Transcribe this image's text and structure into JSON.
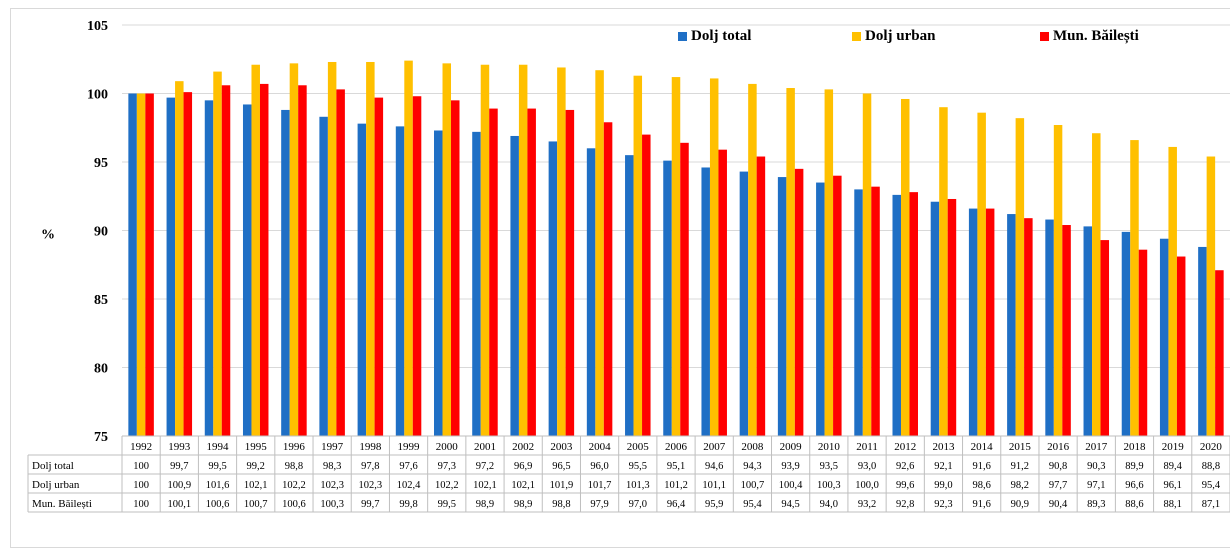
{
  "chart_data": {
    "type": "bar",
    "ylabel": "%",
    "ylim": [
      75,
      105
    ],
    "yticks": [
      75,
      80,
      85,
      90,
      95,
      100,
      105
    ],
    "grid": true,
    "legend_position": "top-right",
    "categories": [
      "1992",
      "1993",
      "1994",
      "1995",
      "1996",
      "1997",
      "1998",
      "1999",
      "2000",
      "2001",
      "2002",
      "2003",
      "2004",
      "2005",
      "2006",
      "2007",
      "2008",
      "2009",
      "2010",
      "2011",
      "2012",
      "2013",
      "2014",
      "2015",
      "2016",
      "2017",
      "2018",
      "2019",
      "2020"
    ],
    "series": [
      {
        "name": "Dolj total",
        "color": "#1f6fc5",
        "values": [
          100,
          99.7,
          99.5,
          99.2,
          98.8,
          98.3,
          97.8,
          97.6,
          97.3,
          97.2,
          96.9,
          96.5,
          96.0,
          95.5,
          95.1,
          94.6,
          94.3,
          93.9,
          93.5,
          93.0,
          92.6,
          92.1,
          91.6,
          91.2,
          90.8,
          90.3,
          89.9,
          89.4,
          88.8
        ],
        "labels": [
          "100",
          "99,7",
          "99,5",
          "99,2",
          "98,8",
          "98,3",
          "97,8",
          "97,6",
          "97,3",
          "97,2",
          "96,9",
          "96,5",
          "96,0",
          "95,5",
          "95,1",
          "94,6",
          "94,3",
          "93,9",
          "93,5",
          "93,0",
          "92,6",
          "92,1",
          "91,6",
          "91,2",
          "90,8",
          "90,3",
          "89,9",
          "89,4",
          "88,8"
        ]
      },
      {
        "name": "Dolj urban",
        "color": "#ffc000",
        "values": [
          100,
          100.9,
          101.6,
          102.1,
          102.2,
          102.3,
          102.3,
          102.4,
          102.2,
          102.1,
          102.1,
          101.9,
          101.7,
          101.3,
          101.2,
          101.1,
          100.7,
          100.4,
          100.3,
          100.0,
          99.6,
          99.0,
          98.6,
          98.2,
          97.7,
          97.1,
          96.6,
          96.1,
          95.4
        ],
        "labels": [
          "100",
          "100,9",
          "101,6",
          "102,1",
          "102,2",
          "102,3",
          "102,3",
          "102,4",
          "102,2",
          "102,1",
          "102,1",
          "101,9",
          "101,7",
          "101,3",
          "101,2",
          "101,1",
          "100,7",
          "100,4",
          "100,3",
          "100,0",
          "99,6",
          "99,0",
          "98,6",
          "98,2",
          "97,7",
          "97,1",
          "96,6",
          "96,1",
          "95,4"
        ]
      },
      {
        "name": "Mun. Băilești",
        "color": "#ff0000",
        "values": [
          100,
          100.1,
          100.6,
          100.7,
          100.6,
          100.3,
          99.7,
          99.8,
          99.5,
          98.9,
          98.9,
          98.8,
          97.9,
          97.0,
          96.4,
          95.9,
          95.4,
          94.5,
          94.0,
          93.2,
          92.8,
          92.3,
          91.6,
          90.9,
          90.4,
          89.3,
          88.6,
          88.1,
          87.1
        ],
        "labels": [
          "100",
          "100,1",
          "100,6",
          "100,7",
          "100,6",
          "100,3",
          "99,7",
          "99,8",
          "99,5",
          "98,9",
          "98,9",
          "98,8",
          "97,9",
          "97,0",
          "96,4",
          "95,9",
          "95,4",
          "94,5",
          "94,0",
          "93,2",
          "92,8",
          "92,3",
          "91,6",
          "90,9",
          "90,4",
          "89,3",
          "88,6",
          "88,1",
          "87,1"
        ]
      }
    ],
    "table_row_labels": [
      "Dolj total",
      "Dolj urban",
      "Mun. Băilești"
    ]
  }
}
